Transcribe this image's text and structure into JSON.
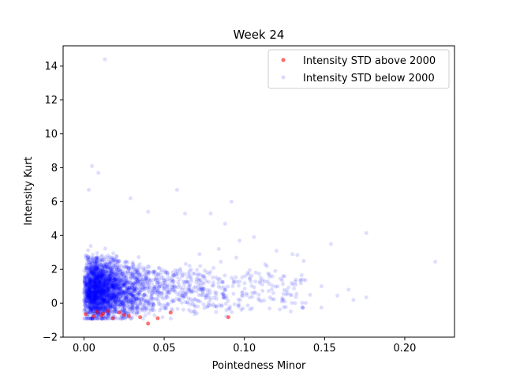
{
  "chart_data": {
    "type": "scatter",
    "title": "Week 24",
    "xlabel": "Pointedness Minor",
    "ylabel": "Intensity Kurt",
    "xlim": [
      -0.013,
      0.231
    ],
    "ylim": [
      -2,
      15.2
    ],
    "xticks": [
      0.0,
      0.05,
      0.1,
      0.15,
      0.2
    ],
    "xtick_labels": [
      "0.00",
      "0.05",
      "0.10",
      "0.15",
      "0.20"
    ],
    "yticks": [
      -2,
      0,
      2,
      4,
      6,
      8,
      10,
      12,
      14
    ],
    "ytick_labels": [
      "−2",
      "0",
      "2",
      "4",
      "6",
      "8",
      "10",
      "12",
      "14"
    ],
    "grid": false,
    "legend_position": "top-right",
    "series": [
      {
        "name": "Intensity STD above 2000",
        "color": "#ff0000",
        "points": [
          [
            0.001,
            -0.65
          ],
          [
            0.006,
            -0.78
          ],
          [
            0.011,
            -0.72
          ],
          [
            0.012,
            -0.6
          ],
          [
            0.018,
            -0.88
          ],
          [
            0.022,
            -0.55
          ],
          [
            0.025,
            -0.68
          ],
          [
            0.028,
            -0.75
          ],
          [
            0.035,
            -0.82
          ],
          [
            0.04,
            -1.2
          ],
          [
            0.046,
            -0.88
          ],
          [
            0.054,
            -0.55
          ],
          [
            0.09,
            -0.82
          ],
          [
            0.015,
            -0.45
          ],
          [
            0.008,
            -0.5
          ]
        ]
      },
      {
        "name": "Intensity STD below 2000",
        "color": "#0000ff",
        "points": [
          [
            0.013,
            14.4
          ],
          [
            0.005,
            8.1
          ],
          [
            0.009,
            7.7
          ],
          [
            0.003,
            6.7
          ],
          [
            0.058,
            6.7
          ],
          [
            0.029,
            6.2
          ],
          [
            0.092,
            6.0
          ],
          [
            0.04,
            5.4
          ],
          [
            0.063,
            5.3
          ],
          [
            0.079,
            5.3
          ],
          [
            0.088,
            4.7
          ],
          [
            0.176,
            4.15
          ],
          [
            0.106,
            3.9
          ],
          [
            0.097,
            3.7
          ],
          [
            0.154,
            3.5
          ],
          [
            0.12,
            3.1
          ],
          [
            0.13,
            2.9
          ],
          [
            0.133,
            2.85
          ],
          [
            0.219,
            2.45
          ],
          [
            0.137,
            2.5
          ],
          [
            0.113,
            2.3
          ],
          [
            0.125,
            1.6
          ],
          [
            0.148,
            1.0
          ],
          [
            0.165,
            0.8
          ],
          [
            0.176,
            0.35
          ],
          [
            0.158,
            0.45
          ],
          [
            0.168,
            0.2
          ],
          [
            0.148,
            -0.25
          ],
          [
            0.132,
            1.1
          ],
          [
            0.118,
            0.6
          ],
          [
            0.141,
            0.5
          ],
          [
            0.102,
            1.8
          ],
          [
            0.11,
            1.3
          ],
          [
            0.095,
            2.7
          ],
          [
            0.084,
            3.2
          ],
          [
            0.072,
            2.9
          ]
        ],
        "cluster": {
          "note": "dense cloud of several thousand semi-transparent points",
          "x_center": 0.01,
          "y_center": 0.8,
          "x_range": [
            0.0,
            0.1
          ],
          "y_range": [
            -0.9,
            5.5
          ]
        }
      }
    ]
  }
}
